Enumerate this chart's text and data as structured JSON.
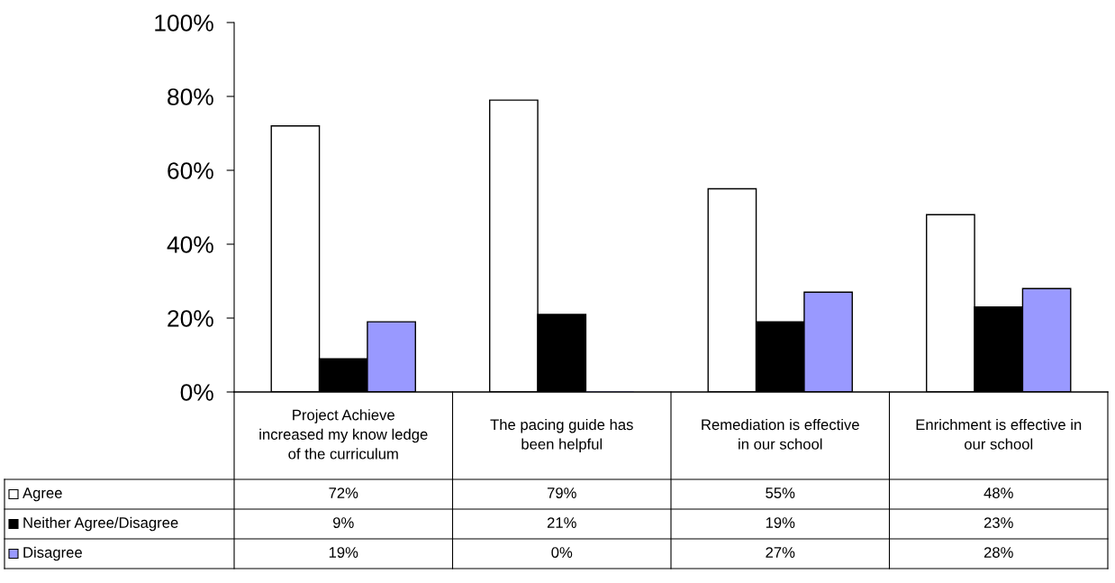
{
  "chart_data": {
    "type": "bar",
    "categories": [
      "Project Achieve\nincreased my know ledge\nof the curriculum",
      "The pacing guide has\nbeen helpful",
      "Remediation is effective\nin our school",
      "Enrichment is effective in\nour school"
    ],
    "series": [
      {
        "name": "Agree",
        "color": "#ffffff",
        "values": [
          72,
          79,
          55,
          48
        ],
        "value_labels": [
          "72%",
          "79%",
          "55%",
          "48%"
        ]
      },
      {
        "name": "Neither Agree/Disagree",
        "color": "#000000",
        "values": [
          9,
          21,
          19,
          23
        ],
        "value_labels": [
          "9%",
          "21%",
          "19%",
          "23%"
        ]
      },
      {
        "name": "Disagree",
        "color": "#9999ff",
        "values": [
          19,
          0,
          27,
          28
        ],
        "value_labels": [
          "19%",
          "0%",
          "27%",
          "28%"
        ]
      }
    ],
    "ylim": [
      0,
      100
    ],
    "yticks": [
      {
        "value": 0,
        "label": "0%"
      },
      {
        "value": 20,
        "label": "20%"
      },
      {
        "value": 40,
        "label": "40%"
      },
      {
        "value": 60,
        "label": "60%"
      },
      {
        "value": 80,
        "label": "80%"
      },
      {
        "value": 100,
        "label": "100%"
      }
    ],
    "grid": false,
    "legend": "bottom left"
  }
}
